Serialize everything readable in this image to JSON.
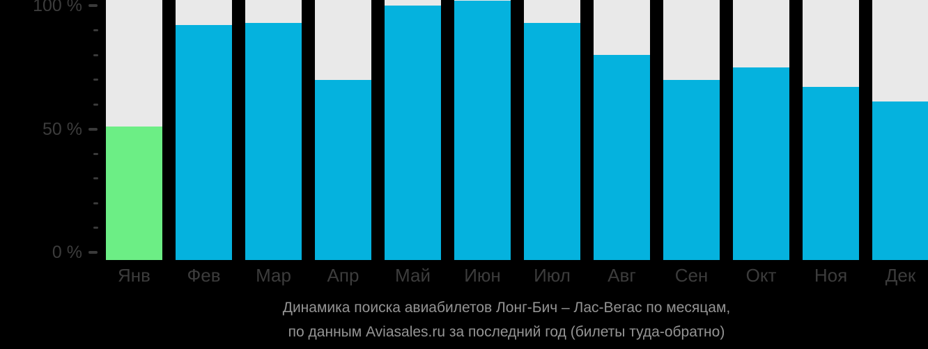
{
  "chart_data": {
    "type": "bar",
    "categories": [
      "Янв",
      "Фев",
      "Мар",
      "Апр",
      "Май",
      "Июн",
      "Июл",
      "Авг",
      "Сен",
      "Окт",
      "Ноя",
      "Дек"
    ],
    "values": [
      51,
      92,
      93,
      70,
      100,
      102,
      93,
      80,
      70,
      75,
      67,
      61
    ],
    "highlighted_category": "Янв",
    "title": "Динамика поиска авиабилетов Лонг-Бич – Лас-Вегас по месяцам,",
    "subtitle": "по данным Aviasales.ru за последний год (билеты туда-обратно)",
    "xlabel": "",
    "ylabel": "",
    "ylim": [
      0,
      100
    ],
    "grid": false,
    "legend": false,
    "y_axis": {
      "major_ticks": [
        {
          "label": "0 %",
          "value": 0
        },
        {
          "label": "50 %",
          "value": 50
        },
        {
          "label": "100 %",
          "value": 100
        }
      ],
      "minor_tick_values": [
        10,
        20,
        30,
        40,
        60,
        70,
        80,
        90
      ]
    },
    "colors": {
      "background": "#000000",
      "bar_fill": "#05b2de",
      "bar_highlight": "#6cee85",
      "bar_track": "#e9e9e9",
      "axis_label": "#3c3c3c",
      "tick": "#3a3a3a",
      "caption": "#949494"
    }
  }
}
